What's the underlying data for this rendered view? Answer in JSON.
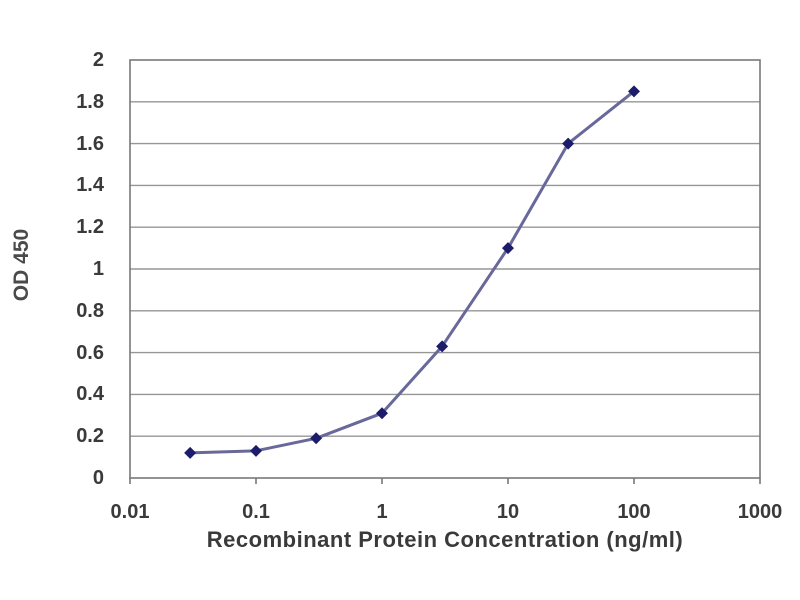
{
  "chart_data": {
    "type": "line",
    "title": "",
    "xlabel": "Recombinant Protein Concentration (ng/ml)",
    "ylabel": "OD 450",
    "x_scale": "log",
    "xlim": [
      0.01,
      1000
    ],
    "ylim": [
      0,
      2
    ],
    "x_tick_values": [
      0.01,
      0.1,
      1,
      10,
      100,
      1000
    ],
    "x_tick_labels": [
      "0.01",
      "0.1",
      "1",
      "10",
      "100",
      "1000"
    ],
    "y_tick_step": 0.2,
    "y_tick_labels": [
      "0",
      "0.2",
      "0.4",
      "0.6",
      "0.8",
      "1",
      "1.2",
      "1.4",
      "1.6",
      "1.8",
      "2"
    ],
    "grid": "horizontal",
    "legend": "none",
    "series": [
      {
        "name": "OD 450",
        "marker": "diamond",
        "x": [
          0.03,
          0.1,
          0.3,
          1,
          3,
          10,
          30,
          100
        ],
        "y": [
          0.12,
          0.13,
          0.19,
          0.31,
          0.63,
          1.1,
          1.6,
          1.85
        ]
      }
    ]
  },
  "colors": {
    "background": "#ffffff",
    "plot_border": "#787878",
    "gridline": "#969696",
    "tick_mark": "#787878",
    "line": "#68689a",
    "marker": "#1c1c6b",
    "text": "#3a3a3a"
  }
}
